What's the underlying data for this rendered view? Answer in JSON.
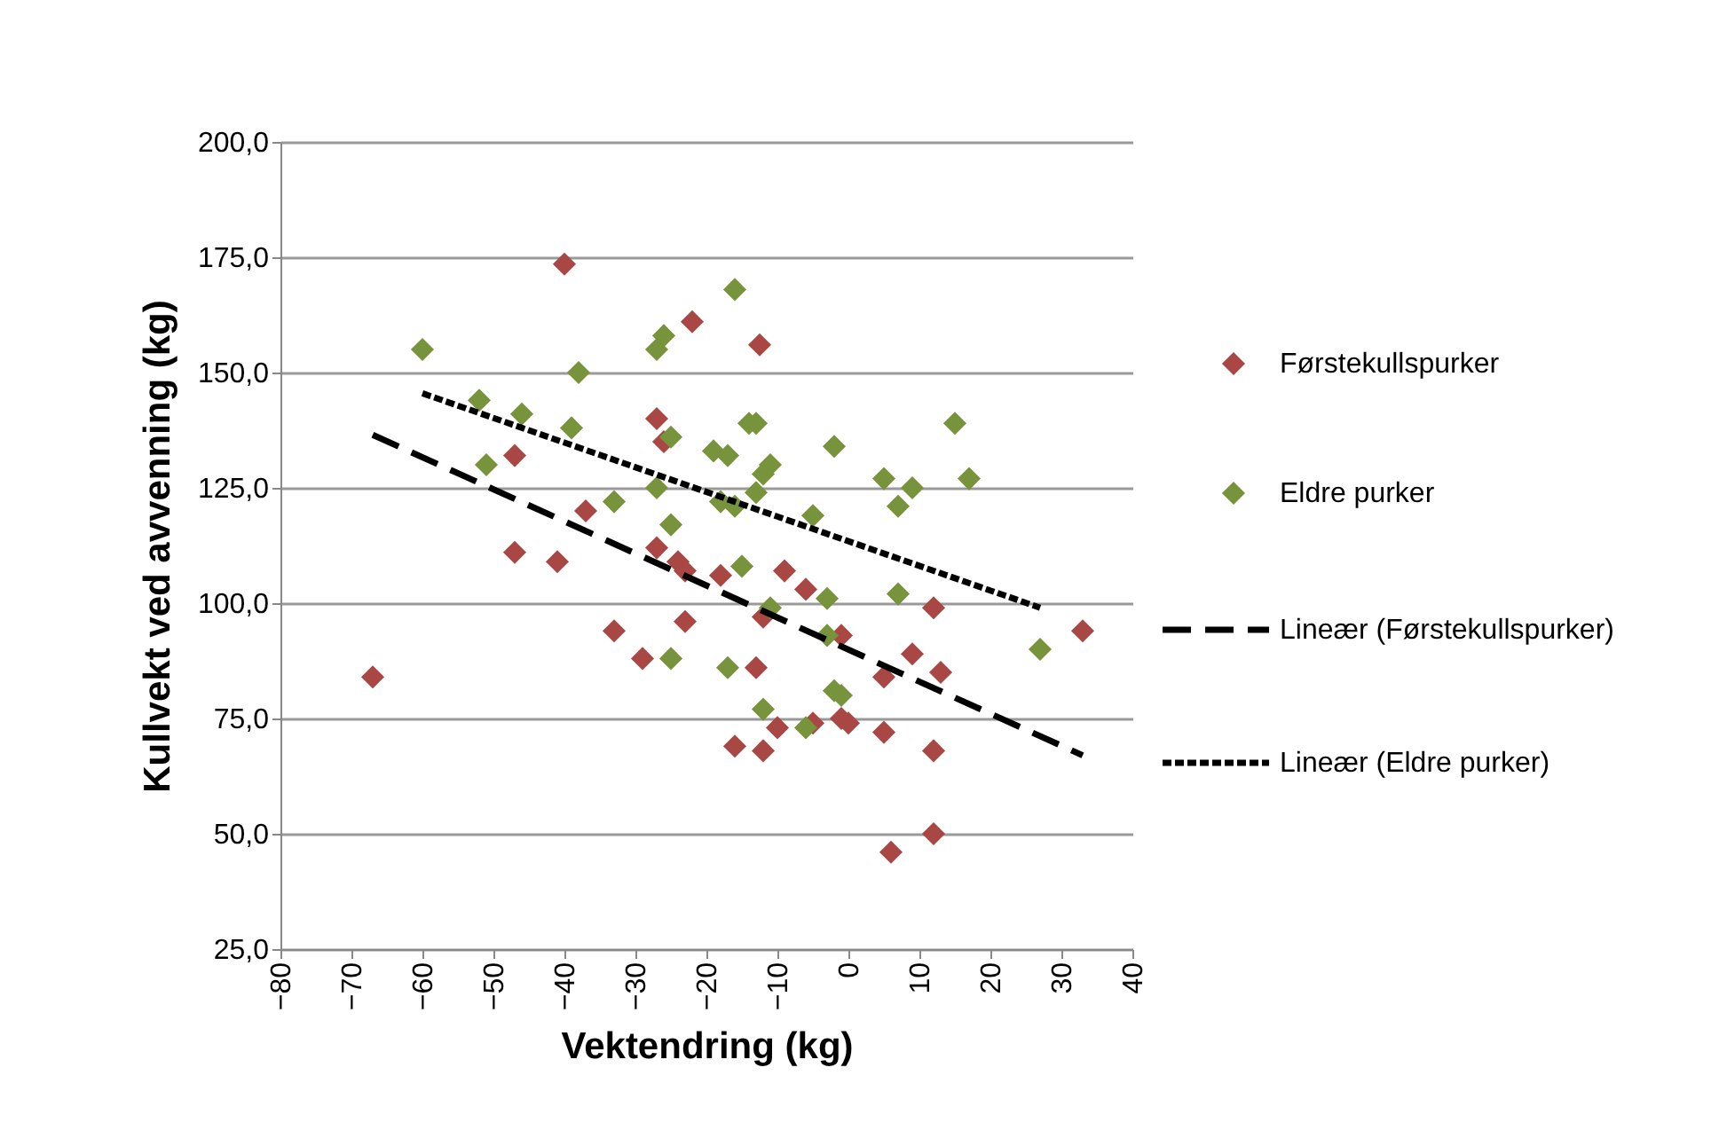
{
  "chart_data": {
    "type": "scatter",
    "xlabel": "Vektendring (kg)",
    "ylabel": "Kullvekt ved avvenning (kg)",
    "xlim": [
      -80,
      40
    ],
    "xticks": [
      -80,
      -70,
      -60,
      -50,
      -40,
      -30,
      -20,
      -10,
      0,
      10,
      20,
      30,
      40
    ],
    "ylim": [
      25,
      200
    ],
    "yticks": [
      {
        "value": 25,
        "label": "25,0"
      },
      {
        "value": 50,
        "label": "50,0"
      },
      {
        "value": 75,
        "label": "75,0"
      },
      {
        "value": 100,
        "label": "100,0"
      },
      {
        "value": 125,
        "label": "125,0"
      },
      {
        "value": 150,
        "label": "150,0"
      },
      {
        "value": 175,
        "label": "175,0"
      },
      {
        "value": 200,
        "label": "200,0"
      }
    ],
    "grid": "y",
    "legend": "right",
    "series": [
      {
        "name": "Førstekullspurker",
        "type": "scatter",
        "marker": "diamond",
        "color": "#a84743",
        "x": [
          -67,
          -40,
          -22,
          -12.5,
          -27,
          -26,
          -47,
          -37,
          -41,
          -47,
          -27,
          -24,
          -23,
          -18,
          -12,
          -9,
          -6,
          -33,
          -23,
          -29,
          -13,
          -16,
          -12,
          -10,
          -5,
          -1,
          0,
          -1,
          5,
          5,
          6,
          9,
          12,
          13,
          12,
          12,
          33
        ],
        "values": [
          84,
          173.5,
          161,
          156,
          140,
          135,
          132,
          120,
          109,
          111,
          112,
          109,
          107,
          106,
          97,
          107,
          103,
          94,
          96,
          88,
          86,
          69,
          68,
          73,
          74,
          75,
          74,
          93,
          84,
          72,
          46,
          89,
          99,
          85,
          68,
          50,
          94
        ]
      },
      {
        "name": "Eldre purker",
        "type": "scatter",
        "marker": "diamond",
        "color": "#77933c",
        "x": [
          -60,
          -52,
          -46,
          -38,
          -39,
          -51,
          -33,
          -27,
          -26,
          -25,
          -27,
          -25,
          -25,
          -16,
          -19,
          -17,
          -14,
          -13,
          -18,
          -16,
          -12,
          -11,
          -13,
          -15,
          -11,
          -17,
          -12,
          -5,
          -2,
          -3,
          -3,
          -2,
          -1,
          -6,
          5,
          7,
          9,
          7,
          15,
          17,
          27
        ],
        "values": [
          155,
          144,
          141,
          150,
          138,
          130,
          122,
          155,
          158,
          136,
          125,
          117,
          88,
          168,
          133,
          132,
          139,
          139,
          122,
          121,
          128,
          130,
          124,
          108,
          99,
          86,
          77,
          119,
          134,
          101,
          93,
          81,
          80,
          73,
          127,
          121,
          125,
          102,
          139,
          127,
          90
        ]
      },
      {
        "name": "Lineær (Førstekullspurker)",
        "type": "line",
        "line_style": "dashed",
        "color": "#000000",
        "x": [
          -67,
          33
        ],
        "values": [
          136.5,
          67
        ]
      },
      {
        "name": "Lineær (Eldre purker)",
        "type": "line",
        "line_style": "dotted",
        "color": "#000000",
        "x": [
          -60,
          27
        ],
        "values": [
          145.5,
          99
        ]
      }
    ]
  }
}
